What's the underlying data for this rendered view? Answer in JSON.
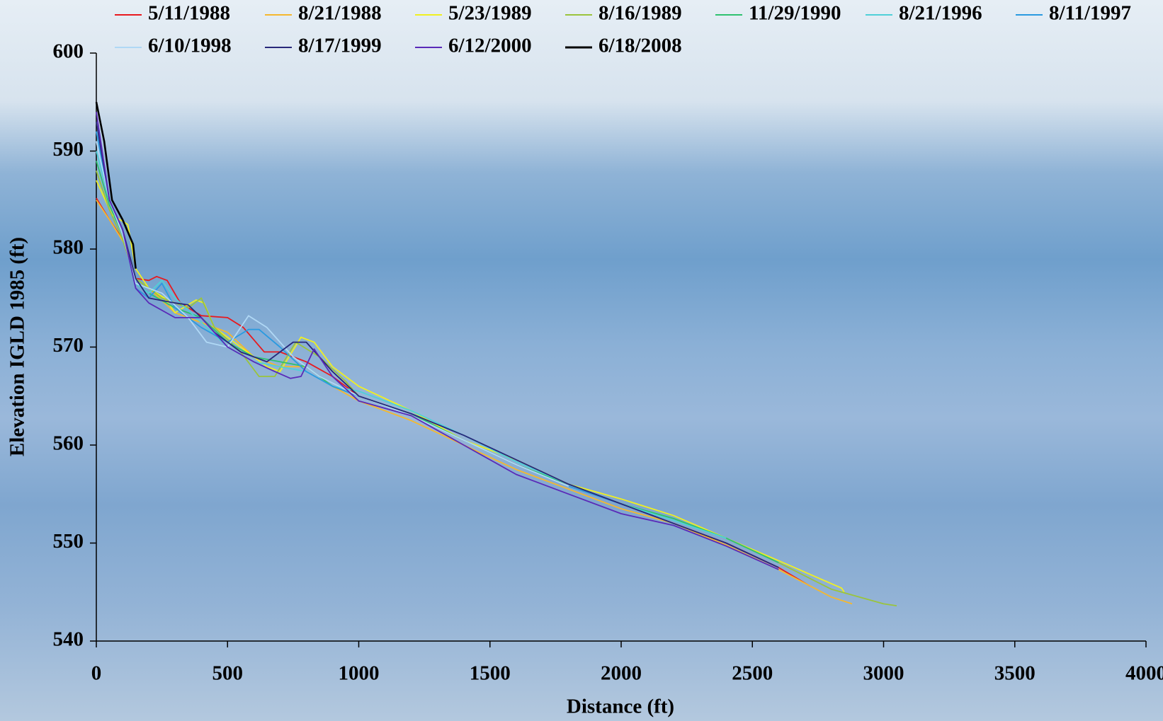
{
  "chart_data": {
    "type": "line",
    "xlabel": "Distance (ft)",
    "ylabel": "Elevation IGLD 1985 (ft)",
    "xlim": [
      0,
      4000
    ],
    "xticks": [
      0,
      500,
      1000,
      1500,
      2000,
      2500,
      3000,
      3500,
      4000
    ],
    "ylim": [
      540,
      600
    ],
    "yticks": [
      540,
      550,
      560,
      570,
      580,
      590,
      600
    ],
    "legend": "top",
    "series": [
      {
        "name": "5/11/1988",
        "color": "#e8191e",
        "x": [
          0,
          50,
          100,
          150,
          200,
          230,
          270,
          320,
          400,
          500,
          560,
          640,
          700,
          800,
          900,
          1000,
          1200,
          1400,
          1600,
          1800,
          2000,
          2200,
          2400,
          2600,
          2720
        ],
        "values": [
          585.2,
          583,
          581,
          577,
          576.8,
          577.2,
          576.8,
          574.5,
          573.2,
          573,
          572,
          569.5,
          569.5,
          568.5,
          567,
          565,
          563,
          560.5,
          558,
          556,
          554,
          552,
          550,
          547.5,
          545.6
        ]
      },
      {
        "name": "8/21/1988",
        "color": "#f5b82e",
        "x": [
          0,
          50,
          120,
          150,
          200,
          300,
          400,
          500,
          600,
          700,
          800,
          900,
          1000,
          1200,
          1400,
          1600,
          1800,
          2000,
          2200,
          2400,
          2600,
          2800,
          2880
        ],
        "values": [
          585,
          583,
          580,
          577,
          576,
          573.5,
          572.5,
          571.5,
          569,
          568,
          568,
          566,
          564.5,
          562.5,
          560,
          557.5,
          555.5,
          553.5,
          552,
          549.8,
          547.3,
          544.5,
          543.8
        ]
      },
      {
        "name": "5/23/1989",
        "color": "#f0f020",
        "x": [
          0,
          60,
          120,
          150,
          200,
          260,
          300,
          380,
          410,
          450,
          550,
          650,
          700,
          780,
          830,
          900,
          1000,
          1200,
          1400,
          1600,
          1800,
          2000,
          2200,
          2400,
          2600,
          2840,
          2850
        ],
        "values": [
          587,
          583.5,
          582.5,
          578,
          576,
          575,
          573.5,
          574.8,
          574.5,
          572,
          570,
          568,
          567.5,
          571,
          570.5,
          568,
          566,
          563.5,
          560.5,
          558.5,
          556,
          554.5,
          552.8,
          550.5,
          548.2,
          545.4,
          545
        ]
      },
      {
        "name": "8/16/1989",
        "color": "#9ac43c",
        "x": [
          0,
          50,
          100,
          150,
          250,
          350,
          400,
          450,
          550,
          620,
          680,
          760,
          850,
          950,
          1000,
          1200,
          1400,
          1600,
          1800,
          2000,
          2200,
          2400,
          2600,
          2800,
          3000,
          3050
        ],
        "values": [
          588,
          584,
          581,
          577,
          575,
          574,
          575,
          572,
          569.5,
          567,
          567,
          570.5,
          569,
          566.5,
          565,
          563,
          560.5,
          558,
          556,
          554,
          552.5,
          550.5,
          548,
          545.3,
          543.8,
          543.6
        ]
      },
      {
        "name": "11/29/1990",
        "color": "#2ec270",
        "x": [
          0,
          50,
          100,
          150,
          200,
          300,
          400,
          500,
          600,
          700,
          800,
          900,
          1000,
          1200,
          1400,
          1600,
          1800,
          2000,
          2200,
          2400,
          2600
        ],
        "values": [
          589,
          584.5,
          581.5,
          576.5,
          575.5,
          574,
          573,
          570.5,
          569,
          568.5,
          568,
          566,
          565,
          563.2,
          560.5,
          558,
          556,
          554,
          552.5,
          550.5,
          548
        ]
      },
      {
        "name": "8/21/1996",
        "color": "#4fd0d8",
        "x": [
          0,
          50,
          100,
          150,
          200,
          250,
          300,
          400,
          500,
          600,
          700,
          800,
          900,
          1000,
          1200,
          1400,
          1600,
          1800,
          2000,
          2200,
          2400
        ],
        "values": [
          590,
          585,
          582,
          576.5,
          575.5,
          576.8,
          575,
          572.5,
          570,
          568.5,
          568,
          567.5,
          566,
          565.5,
          563.5,
          561,
          558.3,
          556,
          554,
          552.3,
          550.5
        ]
      },
      {
        "name": "8/11/1997",
        "color": "#2a9ae0",
        "x": [
          0,
          50,
          100,
          150,
          200,
          250,
          300,
          400,
          500,
          580,
          620,
          700,
          800,
          900,
          1000,
          1200,
          1400,
          1600,
          1800,
          2000,
          2200
        ],
        "values": [
          592,
          585,
          582,
          576,
          575,
          576.5,
          574,
          572,
          570.5,
          571.8,
          571.8,
          570,
          567.5,
          566,
          565,
          563,
          560.5,
          558,
          555.8,
          554,
          552
        ]
      },
      {
        "name": "6/10/1998",
        "color": "#b0d8f5",
        "x": [
          0,
          50,
          100,
          150,
          250,
          350,
          420,
          500,
          580,
          650,
          750,
          850,
          1000,
          1200,
          1400,
          1600,
          1800
        ],
        "values": [
          591,
          585,
          581.5,
          576.5,
          575.5,
          573,
          570.5,
          570,
          573.2,
          572,
          569,
          567,
          565,
          563,
          560.5,
          558,
          555.8
        ]
      },
      {
        "name": "8/17/1999",
        "color": "#28287a",
        "x": [
          0,
          50,
          100,
          150,
          200,
          300,
          350,
          400,
          450,
          550,
          650,
          750,
          800,
          900,
          1000,
          1200,
          1400,
          1600,
          1800,
          2000,
          2200,
          2400,
          2600
        ],
        "values": [
          593,
          585,
          582,
          577,
          575,
          574.5,
          574.3,
          573,
          571.5,
          569.5,
          568.5,
          570.5,
          570.5,
          567.5,
          565,
          563.2,
          561,
          558.5,
          556,
          554,
          552,
          550,
          547.5
        ]
      },
      {
        "name": "6/12/2000",
        "color": "#5a2ab8",
        "x": [
          0,
          50,
          100,
          150,
          200,
          300,
          400,
          500,
          600,
          680,
          740,
          780,
          830,
          900,
          1000,
          1200,
          1400,
          1600,
          1800,
          2000,
          2200,
          2400,
          2600
        ],
        "values": [
          594,
          585,
          582,
          576,
          574.5,
          573,
          573,
          570,
          568.5,
          567.5,
          566.8,
          567,
          569.8,
          567,
          564.5,
          563,
          560,
          557,
          555,
          553,
          551.8,
          549.7,
          547.3
        ]
      },
      {
        "name": "6/18/2008",
        "color": "#000000",
        "x": [
          0,
          30,
          60,
          100,
          140,
          150
        ],
        "values": [
          595,
          591,
          585,
          583,
          580.5,
          578
        ]
      }
    ]
  }
}
